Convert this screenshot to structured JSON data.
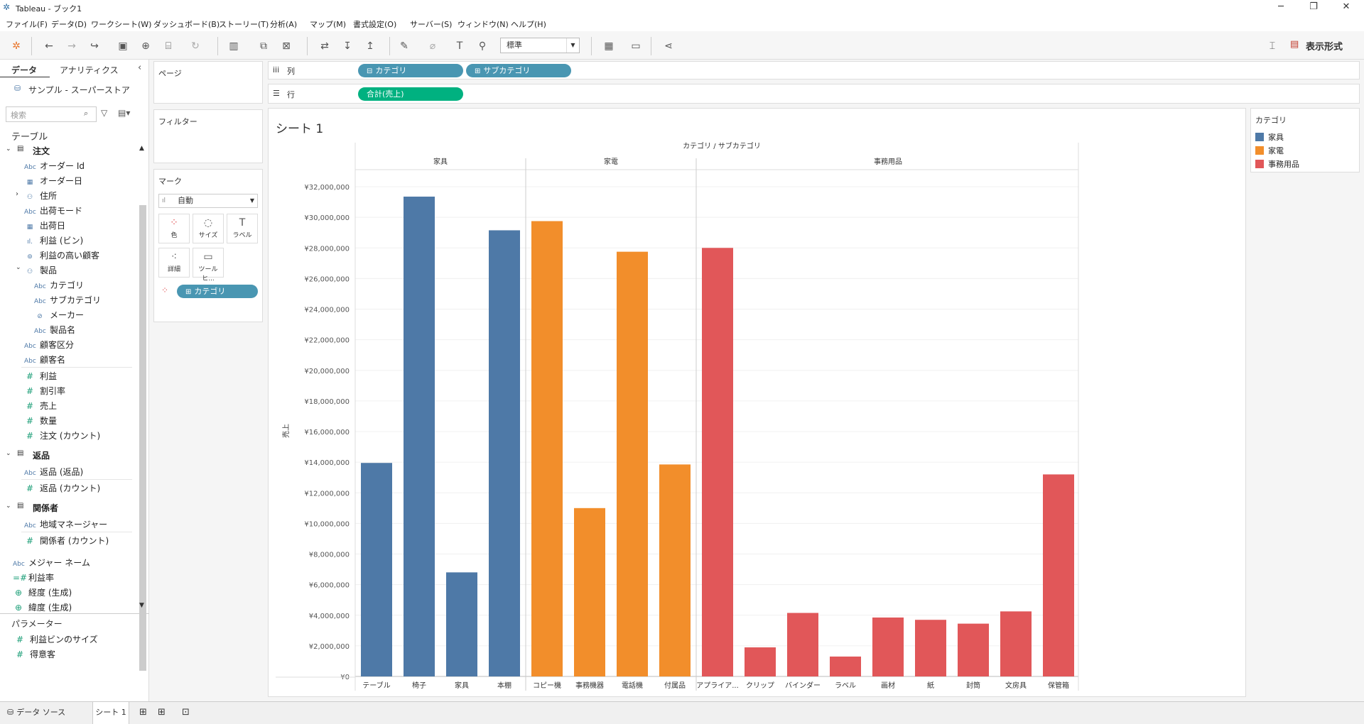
{
  "window": {
    "title": "Tableau - ブック1"
  },
  "menu": [
    "ファイル(F)",
    "データ(D)",
    "ワークシート(W)",
    "ダッシュボード(B)",
    "ストーリー(T)",
    "分析(A)",
    "マップ(M)",
    "書式設定(O)",
    "サーバー(S)",
    "ウィンドウ(N)",
    "ヘルプ(H)"
  ],
  "toolbar": {
    "fit": "標準",
    "show_me": "表示形式"
  },
  "datapane": {
    "tab_data": "データ",
    "tab_analytics": "アナリティクス",
    "datasource": "サンプル - スーパーストア",
    "search_placeholder": "検索",
    "tables_label": "テーブル",
    "orders": "注文",
    "returns": "返品",
    "people": "関係者",
    "parameters_label": "パラメーター",
    "order_fields": [
      "オーダー Id",
      "オーダー日",
      "住所",
      "出荷モード",
      "出荷日",
      "利益 (ビン)",
      "利益の高い顧客",
      "製品",
      "カテゴリ",
      "サブカテゴリ",
      "メーカー",
      "製品名",
      "顧客区分",
      "顧客名",
      "利益",
      "割引率",
      "売上",
      "数量",
      "注文 (カウント)"
    ],
    "return_fields": [
      "返品 (返品)",
      "返品 (カウント)"
    ],
    "people_fields": [
      "地域マネージャー",
      "関係者 (カウント)"
    ],
    "extra_fields": [
      "メジャー ネーム",
      "利益率",
      "経度 (生成)",
      "緯度 (生成)"
    ],
    "params": [
      "利益ビンのサイズ",
      "得意客"
    ]
  },
  "shelves": {
    "pages": "ページ",
    "filters": "フィルター",
    "marks": "マーク",
    "marks_type": "自動",
    "mark_buttons": [
      "色",
      "サイズ",
      "ラベル",
      "詳細",
      "ツールヒ..."
    ],
    "color_pill": "カテゴリ",
    "columns_label": "列",
    "rows_label": "行",
    "col_pills": [
      "カテゴリ",
      "サブカテゴリ"
    ],
    "row_pill": "合計(売上)"
  },
  "sheet": {
    "title": "シート 1"
  },
  "legend": {
    "title": "カテゴリ",
    "items": [
      {
        "label": "家具",
        "color": "#4e79a7"
      },
      {
        "label": "家電",
        "color": "#f28e2b"
      },
      {
        "label": "事務用品",
        "color": "#e15759"
      }
    ]
  },
  "chart_data": {
    "type": "bar",
    "title": "シート 1",
    "header_label": "カテゴリ / サブカテゴリ",
    "ylabel": "売上",
    "ylim": [
      0,
      32000000
    ],
    "yticks": [
      "¥0",
      "¥2,000,000",
      "¥4,000,000",
      "¥6,000,000",
      "¥8,000,000",
      "¥10,000,000",
      "¥12,000,000",
      "¥14,000,000",
      "¥16,000,000",
      "¥18,000,000",
      "¥20,000,000",
      "¥22,000,000",
      "¥24,000,000",
      "¥26,000,000",
      "¥28,000,000",
      "¥30,000,000",
      "¥32,000,000"
    ],
    "groups": [
      {
        "name": "家具",
        "color": "#4e79a7",
        "categories": [
          "テーブル",
          "椅子",
          "家具",
          "本棚"
        ],
        "values": [
          13950000,
          31350000,
          6800000,
          29150000
        ]
      },
      {
        "name": "家電",
        "color": "#f28e2b",
        "categories": [
          "コピー機",
          "事務機器",
          "電話機",
          "付属品"
        ],
        "values": [
          29750000,
          11000000,
          27750000,
          13850000
        ]
      },
      {
        "name": "事務用品",
        "color": "#e15759",
        "categories": [
          "アプライア...",
          "クリップ",
          "バインダー",
          "ラベル",
          "画材",
          "紙",
          "封筒",
          "文房具",
          "保管箱"
        ],
        "values": [
          28000000,
          1900000,
          4150000,
          1300000,
          3850000,
          3700000,
          3450000,
          4250000,
          13200000
        ]
      }
    ]
  },
  "bottom": {
    "datasource_tab": "データ ソース",
    "sheet_tab": "シート 1"
  }
}
